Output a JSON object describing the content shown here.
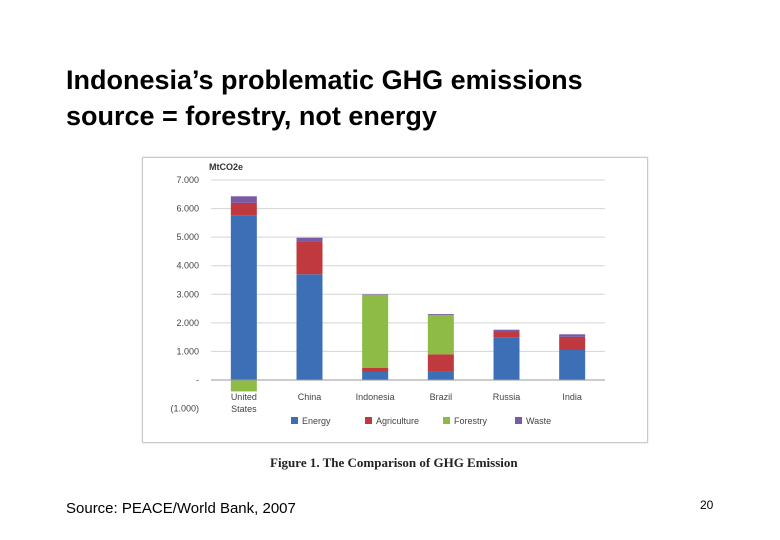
{
  "slide": {
    "title_line1": "Indonesia’s problematic GHG emissions",
    "title_line2": "source = forestry, not energy",
    "figure_caption": "Figure 1. The Comparison of GHG Emission",
    "source": "Source: PEACE/World Bank, 2007",
    "page_number": "20"
  },
  "chart_data": {
    "type": "bar",
    "stacked": true,
    "unit_label": "MtCO2e",
    "categories": [
      "United States",
      "China",
      "Indonesia",
      "Brazil",
      "Russia",
      "India"
    ],
    "series": [
      {
        "name": "Energy",
        "color": "#3d6fb6",
        "values": [
          5750,
          3700,
          280,
          300,
          1500,
          1050
        ]
      },
      {
        "name": "Agriculture",
        "color": "#c0393f",
        "values": [
          450,
          1150,
          150,
          600,
          180,
          460
        ]
      },
      {
        "name": "Forestry",
        "color": "#8ebb46",
        "values": [
          -400,
          0,
          2550,
          1380,
          0,
          0
        ]
      },
      {
        "name": "Waste",
        "color": "#7a5aa4",
        "values": [
          230,
          130,
          20,
          30,
          80,
          90
        ]
      }
    ],
    "y_ticks": [
      {
        "value": 7000,
        "label": "7.000"
      },
      {
        "value": 6000,
        "label": "6.000"
      },
      {
        "value": 5000,
        "label": "5.000"
      },
      {
        "value": 4000,
        "label": "4.000"
      },
      {
        "value": 3000,
        "label": "3.000"
      },
      {
        "value": 2000,
        "label": "2.000"
      },
      {
        "value": 1000,
        "label": "1.000"
      },
      {
        "value": 0,
        "label": "-"
      },
      {
        "value": -1000,
        "label": "(1.000)"
      }
    ],
    "ylim": [
      -1000,
      7000
    ],
    "grid": true,
    "legend_position": "bottom"
  }
}
